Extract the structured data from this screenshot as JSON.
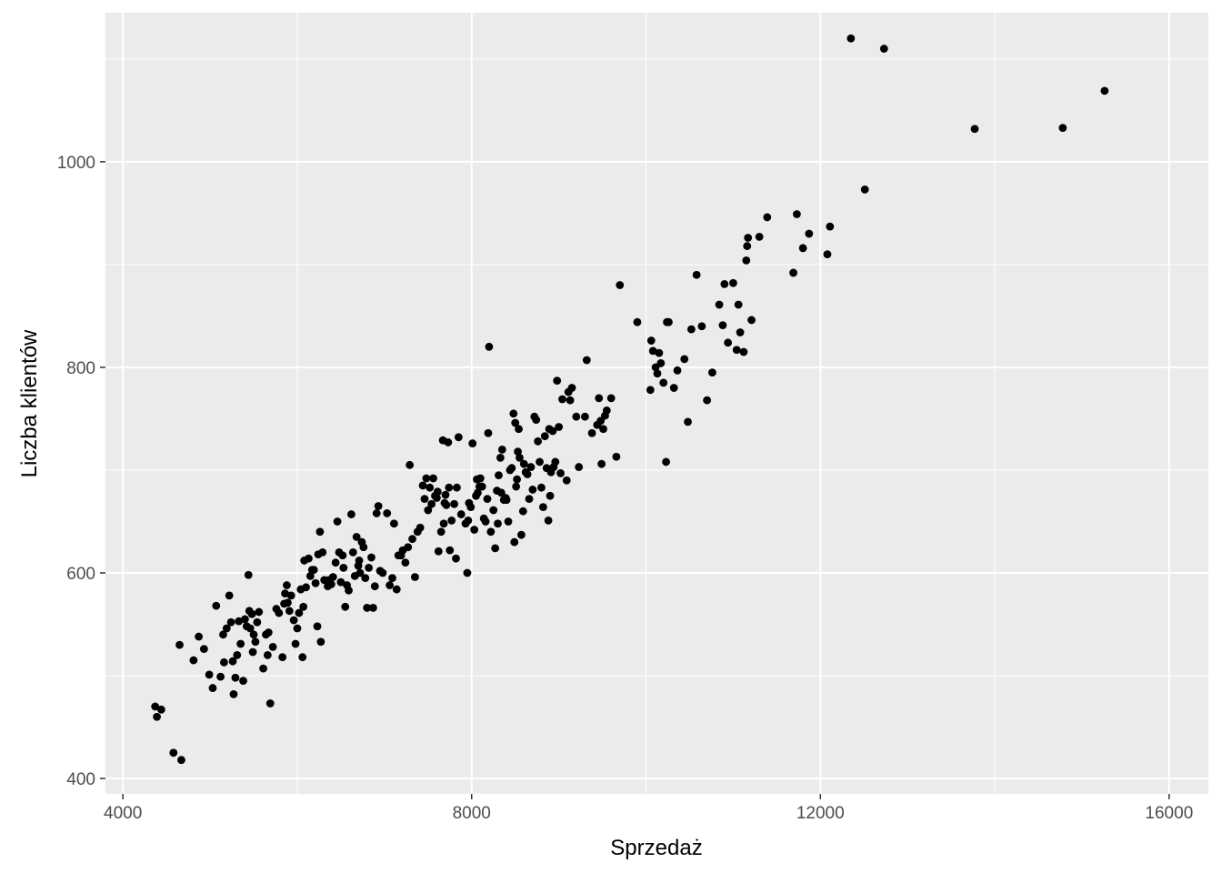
{
  "chart_data": {
    "type": "scatter",
    "title": "",
    "xlabel": "Sprzedaż",
    "ylabel": "Liczba klientów",
    "xlim": [
      3800,
      16450
    ],
    "ylim": [
      385,
      1145
    ],
    "x_ticks": [
      4000,
      8000,
      12000,
      16000
    ],
    "x_tick_labels": [
      "4000",
      "8000",
      "12000",
      "16000"
    ],
    "y_ticks": [
      400,
      600,
      800,
      1000
    ],
    "y_tick_labels": [
      "400",
      "600",
      "800",
      "1000"
    ],
    "grid": true,
    "colors": {
      "panel": "#ebebeb",
      "grid_major": "#ffffff",
      "point": "#000000"
    },
    "points": [
      [
        4370,
        470
      ],
      [
        4390,
        460
      ],
      [
        4440,
        467
      ],
      [
        4580,
        425
      ],
      [
        4650,
        530
      ],
      [
        4670,
        418
      ],
      [
        4810,
        515
      ],
      [
        4870,
        538
      ],
      [
        4930,
        526
      ],
      [
        4990,
        501
      ],
      [
        5030,
        488
      ],
      [
        5070,
        568
      ],
      [
        5120,
        499
      ],
      [
        5150,
        540
      ],
      [
        5160,
        513
      ],
      [
        5190,
        546
      ],
      [
        5220,
        578
      ],
      [
        5240,
        552
      ],
      [
        5260,
        514
      ],
      [
        5270,
        482
      ],
      [
        5290,
        498
      ],
      [
        5310,
        520
      ],
      [
        5330,
        553
      ],
      [
        5350,
        531
      ],
      [
        5380,
        495
      ],
      [
        5400,
        555
      ],
      [
        5420,
        548
      ],
      [
        5440,
        598
      ],
      [
        5450,
        563
      ],
      [
        5460,
        546
      ],
      [
        5480,
        560
      ],
      [
        5490,
        523
      ],
      [
        5500,
        540
      ],
      [
        5520,
        533
      ],
      [
        5540,
        552
      ],
      [
        5560,
        562
      ],
      [
        5610,
        507
      ],
      [
        5640,
        540
      ],
      [
        5660,
        520
      ],
      [
        5670,
        542
      ],
      [
        5690,
        473
      ],
      [
        5720,
        528
      ],
      [
        5760,
        565
      ],
      [
        5790,
        561
      ],
      [
        5830,
        518
      ],
      [
        5850,
        570
      ],
      [
        5860,
        580
      ],
      [
        5880,
        588
      ],
      [
        5890,
        571
      ],
      [
        5910,
        563
      ],
      [
        5930,
        578
      ],
      [
        5960,
        554
      ],
      [
        5980,
        531
      ],
      [
        6000,
        546
      ],
      [
        6020,
        561
      ],
      [
        6040,
        584
      ],
      [
        6060,
        518
      ],
      [
        6070,
        567
      ],
      [
        6080,
        612
      ],
      [
        6100,
        586
      ],
      [
        6130,
        614
      ],
      [
        6150,
        597
      ],
      [
        6170,
        603
      ],
      [
        6190,
        603
      ],
      [
        6210,
        590
      ],
      [
        6230,
        548
      ],
      [
        6240,
        618
      ],
      [
        6260,
        640
      ],
      [
        6270,
        533
      ],
      [
        6290,
        620
      ],
      [
        6310,
        593
      ],
      [
        6350,
        587
      ],
      [
        6360,
        593
      ],
      [
        6390,
        589
      ],
      [
        6410,
        596
      ],
      [
        6440,
        610
      ],
      [
        6460,
        650
      ],
      [
        6480,
        620
      ],
      [
        6500,
        591
      ],
      [
        6520,
        617
      ],
      [
        6530,
        605
      ],
      [
        6550,
        567
      ],
      [
        6570,
        588
      ],
      [
        6590,
        583
      ],
      [
        6620,
        657
      ],
      [
        6640,
        620
      ],
      [
        6660,
        597
      ],
      [
        6680,
        635
      ],
      [
        6700,
        607
      ],
      [
        6710,
        612
      ],
      [
        6720,
        600
      ],
      [
        6740,
        630
      ],
      [
        6760,
        625
      ],
      [
        6780,
        595
      ],
      [
        6800,
        566
      ],
      [
        6820,
        605
      ],
      [
        6850,
        615
      ],
      [
        6870,
        566
      ],
      [
        6890,
        587
      ],
      [
        6910,
        658
      ],
      [
        6930,
        665
      ],
      [
        6950,
        602
      ],
      [
        6980,
        600
      ],
      [
        7030,
        658
      ],
      [
        7060,
        588
      ],
      [
        7090,
        595
      ],
      [
        7110,
        648
      ],
      [
        7140,
        584
      ],
      [
        7160,
        617
      ],
      [
        7190,
        617
      ],
      [
        7210,
        622
      ],
      [
        7240,
        610
      ],
      [
        7270,
        625
      ],
      [
        7290,
        705
      ],
      [
        7320,
        633
      ],
      [
        7350,
        596
      ],
      [
        7380,
        640
      ],
      [
        7410,
        644
      ],
      [
        7440,
        685
      ],
      [
        7460,
        672
      ],
      [
        7480,
        692
      ],
      [
        7500,
        661
      ],
      [
        7520,
        683
      ],
      [
        7540,
        667
      ],
      [
        7560,
        692
      ],
      [
        7580,
        675
      ],
      [
        7600,
        673
      ],
      [
        7610,
        679
      ],
      [
        7620,
        621
      ],
      [
        7650,
        640
      ],
      [
        7670,
        729
      ],
      [
        7680,
        648
      ],
      [
        7690,
        668
      ],
      [
        7700,
        676
      ],
      [
        7710,
        666
      ],
      [
        7730,
        727
      ],
      [
        7740,
        683
      ],
      [
        7750,
        622
      ],
      [
        7770,
        651
      ],
      [
        7800,
        667
      ],
      [
        7820,
        614
      ],
      [
        7830,
        683
      ],
      [
        7850,
        732
      ],
      [
        7880,
        657
      ],
      [
        7930,
        648
      ],
      [
        7950,
        600
      ],
      [
        7960,
        651
      ],
      [
        7970,
        668
      ],
      [
        7990,
        664
      ],
      [
        8010,
        726
      ],
      [
        8030,
        642
      ],
      [
        8050,
        675
      ],
      [
        8060,
        691
      ],
      [
        8070,
        678
      ],
      [
        8090,
        684
      ],
      [
        8100,
        692
      ],
      [
        8120,
        684
      ],
      [
        8140,
        653
      ],
      [
        8160,
        650
      ],
      [
        8180,
        672
      ],
      [
        8190,
        736
      ],
      [
        8200,
        820
      ],
      [
        8220,
        640
      ],
      [
        8250,
        661
      ],
      [
        8270,
        624
      ],
      [
        8290,
        680
      ],
      [
        8300,
        648
      ],
      [
        8310,
        695
      ],
      [
        8330,
        712
      ],
      [
        8340,
        678
      ],
      [
        8350,
        720
      ],
      [
        8370,
        671
      ],
      [
        8390,
        673
      ],
      [
        8400,
        671
      ],
      [
        8420,
        650
      ],
      [
        8440,
        700
      ],
      [
        8460,
        702
      ],
      [
        8480,
        755
      ],
      [
        8490,
        630
      ],
      [
        8500,
        746
      ],
      [
        8510,
        684
      ],
      [
        8520,
        691
      ],
      [
        8530,
        718
      ],
      [
        8540,
        740
      ],
      [
        8550,
        712
      ],
      [
        8570,
        637
      ],
      [
        8590,
        660
      ],
      [
        8600,
        706
      ],
      [
        8620,
        698
      ],
      [
        8640,
        696
      ],
      [
        8660,
        672
      ],
      [
        8680,
        703
      ],
      [
        8700,
        681
      ],
      [
        8720,
        752
      ],
      [
        8740,
        749
      ],
      [
        8760,
        728
      ],
      [
        8780,
        708
      ],
      [
        8800,
        683
      ],
      [
        8820,
        664
      ],
      [
        8840,
        733
      ],
      [
        8860,
        702
      ],
      [
        8880,
        651
      ],
      [
        8890,
        740
      ],
      [
        8900,
        675
      ],
      [
        8910,
        698
      ],
      [
        8930,
        738
      ],
      [
        8940,
        703
      ],
      [
        8960,
        708
      ],
      [
        8980,
        787
      ],
      [
        9000,
        742
      ],
      [
        9020,
        697
      ],
      [
        9040,
        769
      ],
      [
        9090,
        690
      ],
      [
        9110,
        776
      ],
      [
        9130,
        768
      ],
      [
        9150,
        780
      ],
      [
        9200,
        752
      ],
      [
        9230,
        703
      ],
      [
        9300,
        752
      ],
      [
        9320,
        807
      ],
      [
        9380,
        736
      ],
      [
        9440,
        744
      ],
      [
        9460,
        770
      ],
      [
        9480,
        748
      ],
      [
        9490,
        706
      ],
      [
        9510,
        740
      ],
      [
        9530,
        753
      ],
      [
        9550,
        758
      ],
      [
        9600,
        770
      ],
      [
        9660,
        713
      ],
      [
        9700,
        880
      ],
      [
        9900,
        844
      ],
      [
        10050,
        778
      ],
      [
        10060,
        826
      ],
      [
        10080,
        816
      ],
      [
        10110,
        800
      ],
      [
        10130,
        794
      ],
      [
        10150,
        814
      ],
      [
        10170,
        804
      ],
      [
        10200,
        785
      ],
      [
        10230,
        708
      ],
      [
        10240,
        844
      ],
      [
        10260,
        844
      ],
      [
        10320,
        780
      ],
      [
        10360,
        797
      ],
      [
        10440,
        808
      ],
      [
        10480,
        747
      ],
      [
        10520,
        837
      ],
      [
        10580,
        890
      ],
      [
        10640,
        840
      ],
      [
        10700,
        768
      ],
      [
        10760,
        795
      ],
      [
        10840,
        861
      ],
      [
        10880,
        841
      ],
      [
        10900,
        881
      ],
      [
        10940,
        824
      ],
      [
        11000,
        882
      ],
      [
        11040,
        817
      ],
      [
        11060,
        861
      ],
      [
        11080,
        834
      ],
      [
        11120,
        815
      ],
      [
        11150,
        904
      ],
      [
        11160,
        918
      ],
      [
        11170,
        926
      ],
      [
        11210,
        846
      ],
      [
        11300,
        927
      ],
      [
        11390,
        946
      ],
      [
        11690,
        892
      ],
      [
        11730,
        949
      ],
      [
        11800,
        916
      ],
      [
        11870,
        930
      ],
      [
        12080,
        910
      ],
      [
        12110,
        937
      ],
      [
        12350,
        1120
      ],
      [
        12510,
        973
      ],
      [
        12730,
        1110
      ],
      [
        13770,
        1032
      ],
      [
        14780,
        1033
      ],
      [
        15260,
        1069
      ]
    ]
  }
}
